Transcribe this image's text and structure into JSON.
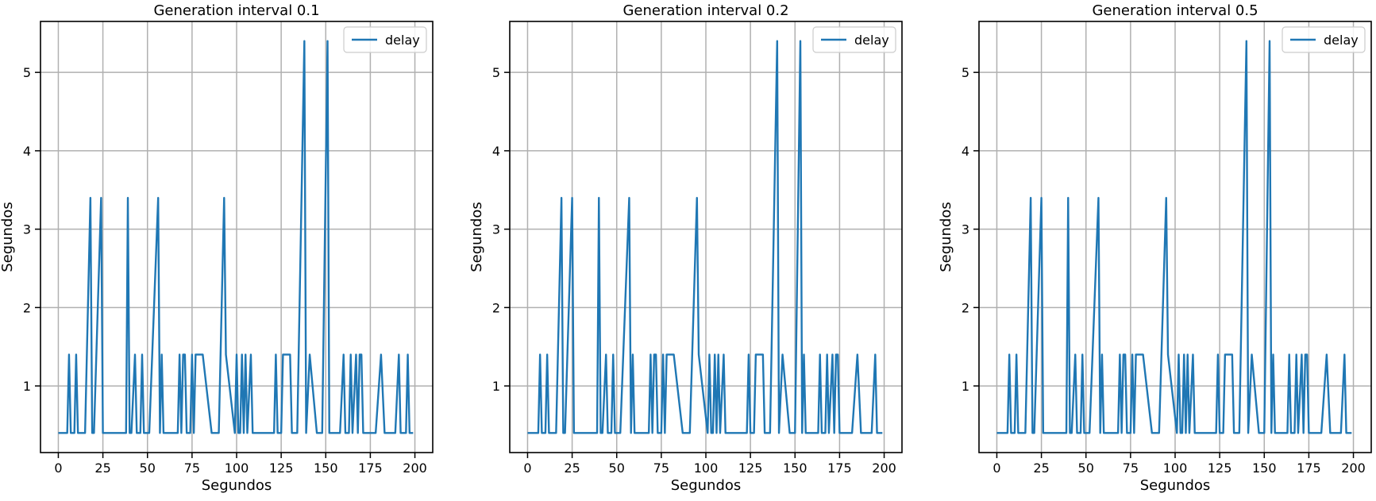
{
  "figure": {
    "background": "#ffffff",
    "line_color": "#1f77b4",
    "grid_color": "#b0b0b0"
  },
  "chart_data": [
    {
      "type": "line",
      "title": "Generation interval 0.1",
      "xlabel": "Segundos",
      "ylabel": "Segundos",
      "xlim": [
        -10,
        210
      ],
      "ylim": [
        0.15,
        5.65
      ],
      "xticks": [
        0,
        25,
        50,
        75,
        100,
        125,
        150,
        175,
        200
      ],
      "yticks": [
        1,
        2,
        3,
        4,
        5
      ],
      "grid": true,
      "legend": "upper right",
      "series": [
        {
          "name": "delay",
          "color": "#1f77b4",
          "points": [
            [
              0,
              0.4
            ],
            [
              5,
              0.4
            ],
            [
              6,
              1.4
            ],
            [
              7,
              0.4
            ],
            [
              9,
              0.4
            ],
            [
              10,
              1.4
            ],
            [
              11,
              0.4
            ],
            [
              15,
              0.4
            ],
            [
              18,
              3.4
            ],
            [
              19,
              0.4
            ],
            [
              20,
              0.4
            ],
            [
              24,
              3.4
            ],
            [
              25,
              0.4
            ],
            [
              38,
              0.4
            ],
            [
              39,
              3.4
            ],
            [
              40,
              0.4
            ],
            [
              41,
              0.4
            ],
            [
              43,
              1.4
            ],
            [
              44,
              0.4
            ],
            [
              46,
              0.4
            ],
            [
              47,
              1.4
            ],
            [
              48,
              0.4
            ],
            [
              51,
              0.4
            ],
            [
              56,
              3.4
            ],
            [
              57,
              0.4
            ],
            [
              58,
              1.4
            ],
            [
              59,
              0.4
            ],
            [
              67,
              0.4
            ],
            [
              68,
              1.4
            ],
            [
              69,
              0.4
            ],
            [
              70,
              1.4
            ],
            [
              71,
              1.4
            ],
            [
              72,
              0.4
            ],
            [
              74,
              0.4
            ],
            [
              75,
              1.4
            ],
            [
              76,
              0.4
            ],
            [
              77,
              1.4
            ],
            [
              81,
              1.4
            ],
            [
              86,
              0.4
            ],
            [
              90,
              0.4
            ],
            [
              93,
              3.4
            ],
            [
              94,
              1.4
            ],
            [
              99,
              0.4
            ],
            [
              100,
              1.4
            ],
            [
              101,
              0.4
            ],
            [
              102,
              0.4
            ],
            [
              103,
              1.4
            ],
            [
              104,
              0.4
            ],
            [
              105,
              1.4
            ],
            [
              106,
              0.4
            ],
            [
              108,
              1.4
            ],
            [
              109,
              0.4
            ],
            [
              121,
              0.4
            ],
            [
              122,
              1.4
            ],
            [
              123,
              0.4
            ],
            [
              125,
              0.4
            ],
            [
              126,
              1.4
            ],
            [
              130,
              1.4
            ],
            [
              131,
              0.4
            ],
            [
              134,
              0.4
            ],
            [
              138,
              5.4
            ],
            [
              139,
              0.4
            ],
            [
              141,
              1.4
            ],
            [
              145,
              0.4
            ],
            [
              148,
              0.4
            ],
            [
              151,
              5.4
            ],
            [
              152,
              0.4
            ],
            [
              158,
              0.4
            ],
            [
              160,
              1.4
            ],
            [
              161,
              0.4
            ],
            [
              163,
              0.4
            ],
            [
              164,
              1.4
            ],
            [
              165,
              0.4
            ],
            [
              167,
              1.4
            ],
            [
              168,
              0.4
            ],
            [
              169,
              1.4
            ],
            [
              170,
              1.4
            ],
            [
              171,
              0.4
            ],
            [
              178,
              0.4
            ],
            [
              181,
              1.4
            ],
            [
              183,
              0.4
            ],
            [
              189,
              0.4
            ],
            [
              191,
              1.4
            ],
            [
              192,
              0.4
            ],
            [
              195,
              0.4
            ],
            [
              196,
              1.4
            ],
            [
              197,
              0.4
            ],
            [
              199,
              0.4
            ]
          ]
        }
      ]
    },
    {
      "type": "line",
      "title": "Generation interval 0.2",
      "xlabel": "Segundos",
      "ylabel": "Segundos",
      "xlim": [
        -10,
        210
      ],
      "ylim": [
        0.15,
        5.65
      ],
      "xticks": [
        0,
        25,
        50,
        75,
        100,
        125,
        150,
        175,
        200
      ],
      "yticks": [
        1,
        2,
        3,
        4,
        5
      ],
      "grid": true,
      "legend": "upper right",
      "series": [
        {
          "name": "delay",
          "color": "#1f77b4",
          "points": [
            [
              0,
              0.4
            ],
            [
              6,
              0.4
            ],
            [
              7,
              1.4
            ],
            [
              8,
              0.4
            ],
            [
              10,
              0.4
            ],
            [
              11,
              1.4
            ],
            [
              12,
              0.4
            ],
            [
              16,
              0.4
            ],
            [
              19,
              3.4
            ],
            [
              20,
              0.4
            ],
            [
              21,
              0.4
            ],
            [
              25,
              3.4
            ],
            [
              26,
              0.4
            ],
            [
              39,
              0.4
            ],
            [
              40,
              3.4
            ],
            [
              41,
              0.4
            ],
            [
              42,
              0.4
            ],
            [
              44,
              1.4
            ],
            [
              45,
              0.4
            ],
            [
              47,
              0.4
            ],
            [
              48,
              1.4
            ],
            [
              49,
              0.4
            ],
            [
              52,
              0.4
            ],
            [
              57,
              3.4
            ],
            [
              58,
              0.4
            ],
            [
              59,
              1.4
            ],
            [
              60,
              0.4
            ],
            [
              68,
              0.4
            ],
            [
              69,
              1.4
            ],
            [
              70,
              0.4
            ],
            [
              71,
              1.4
            ],
            [
              72,
              1.4
            ],
            [
              73,
              0.4
            ],
            [
              75,
              0.4
            ],
            [
              76,
              1.4
            ],
            [
              77,
              0.4
            ],
            [
              78,
              1.4
            ],
            [
              82,
              1.4
            ],
            [
              87,
              0.4
            ],
            [
              91,
              0.4
            ],
            [
              95,
              3.4
            ],
            [
              96,
              1.4
            ],
            [
              101,
              0.4
            ],
            [
              102,
              1.4
            ],
            [
              103,
              0.4
            ],
            [
              104,
              0.4
            ],
            [
              105,
              1.4
            ],
            [
              106,
              0.4
            ],
            [
              107,
              1.4
            ],
            [
              108,
              0.4
            ],
            [
              110,
              1.4
            ],
            [
              111,
              0.4
            ],
            [
              123,
              0.4
            ],
            [
              124,
              1.4
            ],
            [
              125,
              0.4
            ],
            [
              127,
              0.4
            ],
            [
              128,
              1.4
            ],
            [
              132,
              1.4
            ],
            [
              133,
              0.4
            ],
            [
              136,
              0.4
            ],
            [
              140,
              5.4
            ],
            [
              141,
              0.4
            ],
            [
              143,
              1.4
            ],
            [
              147,
              0.4
            ],
            [
              150,
              0.4
            ],
            [
              153,
              5.4
            ],
            [
              154,
              0.4
            ],
            [
              155,
              1.4
            ],
            [
              156,
              0.4
            ],
            [
              163,
              0.4
            ],
            [
              164,
              1.4
            ],
            [
              165,
              0.4
            ],
            [
              167,
              0.4
            ],
            [
              168,
              1.4
            ],
            [
              169,
              0.4
            ],
            [
              171,
              1.4
            ],
            [
              172,
              0.4
            ],
            [
              173,
              1.4
            ],
            [
              174,
              1.4
            ],
            [
              175,
              0.4
            ],
            [
              182,
              0.4
            ],
            [
              185,
              1.4
            ],
            [
              187,
              0.4
            ],
            [
              193,
              0.4
            ],
            [
              195,
              1.4
            ],
            [
              196,
              0.4
            ],
            [
              199,
              0.4
            ]
          ]
        }
      ]
    },
    {
      "type": "line",
      "title": "Generation interval 0.5",
      "xlabel": "Segundos",
      "ylabel": "Segundos",
      "xlim": [
        -10,
        210
      ],
      "ylim": [
        0.15,
        5.65
      ],
      "xticks": [
        0,
        25,
        50,
        75,
        100,
        125,
        150,
        175,
        200
      ],
      "yticks": [
        1,
        2,
        3,
        4,
        5
      ],
      "grid": true,
      "legend": "upper right",
      "series": [
        {
          "name": "delay",
          "color": "#1f77b4",
          "points": [
            [
              0,
              0.4
            ],
            [
              6,
              0.4
            ],
            [
              7,
              1.4
            ],
            [
              8,
              0.4
            ],
            [
              10,
              0.4
            ],
            [
              11,
              1.4
            ],
            [
              12,
              0.4
            ],
            [
              16,
              0.4
            ],
            [
              19,
              3.4
            ],
            [
              20,
              0.4
            ],
            [
              21,
              0.4
            ],
            [
              25,
              3.4
            ],
            [
              26,
              0.4
            ],
            [
              39,
              0.4
            ],
            [
              40,
              3.4
            ],
            [
              41,
              0.4
            ],
            [
              42,
              0.4
            ],
            [
              44,
              1.4
            ],
            [
              45,
              0.4
            ],
            [
              47,
              0.4
            ],
            [
              48,
              1.4
            ],
            [
              49,
              0.4
            ],
            [
              52,
              0.4
            ],
            [
              57,
              3.4
            ],
            [
              58,
              0.4
            ],
            [
              59,
              1.4
            ],
            [
              60,
              0.4
            ],
            [
              68,
              0.4
            ],
            [
              69,
              1.4
            ],
            [
              70,
              0.4
            ],
            [
              71,
              1.4
            ],
            [
              72,
              1.4
            ],
            [
              73,
              0.4
            ],
            [
              75,
              0.4
            ],
            [
              76,
              1.4
            ],
            [
              77,
              0.4
            ],
            [
              78,
              1.4
            ],
            [
              82,
              1.4
            ],
            [
              87,
              0.4
            ],
            [
              91,
              0.4
            ],
            [
              95,
              3.4
            ],
            [
              96,
              1.4
            ],
            [
              101,
              0.4
            ],
            [
              102,
              1.4
            ],
            [
              103,
              0.4
            ],
            [
              104,
              0.4
            ],
            [
              105,
              1.4
            ],
            [
              106,
              0.4
            ],
            [
              107,
              1.4
            ],
            [
              108,
              0.4
            ],
            [
              110,
              1.4
            ],
            [
              111,
              0.4
            ],
            [
              123,
              0.4
            ],
            [
              124,
              1.4
            ],
            [
              125,
              0.4
            ],
            [
              127,
              0.4
            ],
            [
              128,
              1.4
            ],
            [
              132,
              1.4
            ],
            [
              133,
              0.4
            ],
            [
              136,
              0.4
            ],
            [
              140,
              5.4
            ],
            [
              141,
              0.4
            ],
            [
              143,
              1.4
            ],
            [
              147,
              0.4
            ],
            [
              150,
              0.4
            ],
            [
              153,
              5.4
            ],
            [
              154,
              0.4
            ],
            [
              155,
              1.4
            ],
            [
              156,
              0.4
            ],
            [
              163,
              0.4
            ],
            [
              164,
              1.4
            ],
            [
              165,
              0.4
            ],
            [
              167,
              0.4
            ],
            [
              168,
              1.4
            ],
            [
              169,
              0.4
            ],
            [
              171,
              1.4
            ],
            [
              172,
              0.4
            ],
            [
              173,
              1.4
            ],
            [
              174,
              1.4
            ],
            [
              175,
              0.4
            ],
            [
              182,
              0.4
            ],
            [
              185,
              1.4
            ],
            [
              187,
              0.4
            ],
            [
              193,
              0.4
            ],
            [
              195,
              1.4
            ],
            [
              196,
              0.4
            ],
            [
              199,
              0.4
            ]
          ]
        }
      ]
    }
  ]
}
